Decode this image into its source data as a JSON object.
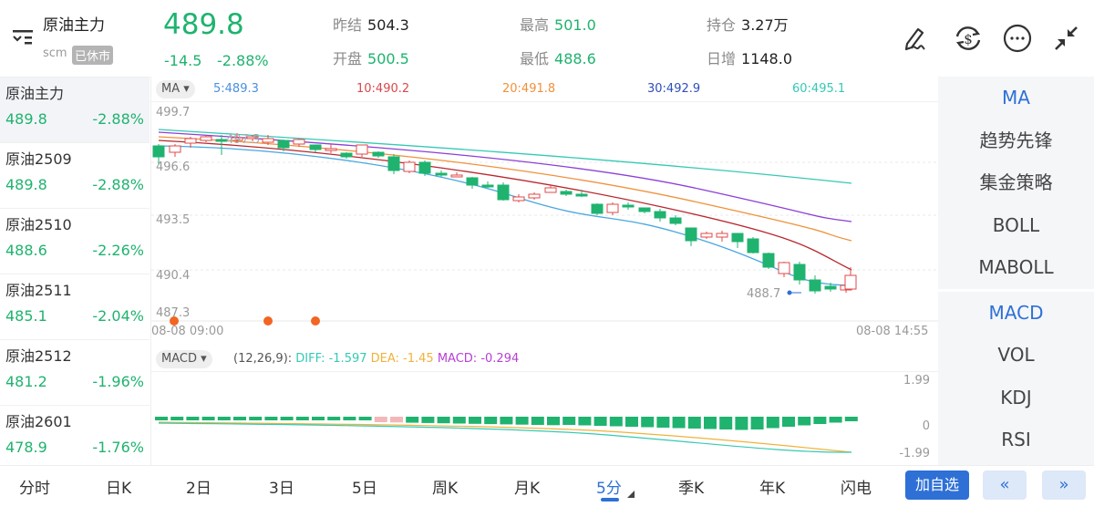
{
  "header": {
    "name": "原油主力",
    "exchange": "scm",
    "status": "已休市",
    "price": "489.8",
    "change": "-14.5",
    "change_pct": "-2.88%",
    "stats": [
      {
        "label": "昨结",
        "value": "504.3",
        "color": "#222222"
      },
      {
        "label": "开盘",
        "value": "500.5",
        "color": "#1fb36f"
      },
      {
        "label": "最高",
        "value": "501.0",
        "color": "#1fb36f"
      },
      {
        "label": "最低",
        "value": "488.6",
        "color": "#1fb36f"
      },
      {
        "label": "持仓",
        "value": "3.27万",
        "color": "#222222"
      },
      {
        "label": "日增",
        "value": "1148.0",
        "color": "#222222"
      }
    ],
    "icons": [
      "draw-icon",
      "currency-exchange-icon",
      "more-icon",
      "collapse-icon"
    ]
  },
  "contracts": [
    {
      "name": "原油主力",
      "price": "489.8",
      "pct": "-2.88%"
    },
    {
      "name": "原油2509",
      "price": "489.8",
      "pct": "-2.88%"
    },
    {
      "name": "原油2510",
      "price": "488.6",
      "pct": "-2.26%"
    },
    {
      "name": "原油2511",
      "price": "485.1",
      "pct": "-2.04%"
    },
    {
      "name": "原油2512",
      "price": "481.2",
      "pct": "-1.96%"
    },
    {
      "name": "原油2601",
      "price": "478.9",
      "pct": "-1.76%"
    }
  ],
  "ma_bar": {
    "selector": "MA ▾",
    "values": [
      {
        "label": "5:489.3",
        "color": "#4a8fe0"
      },
      {
        "label": "10:490.2",
        "color": "#d9484b"
      },
      {
        "label": "20:491.8",
        "color": "#f0913a"
      },
      {
        "label": "30:492.9",
        "color": "#2d4fb8"
      },
      {
        "label": "60:495.1",
        "color": "#35c9b5"
      }
    ]
  },
  "macd_bar": {
    "selector": "MACD ▾",
    "params": "(12,26,9):",
    "diff": "DIFF: -1.597",
    "dea": "DEA: -1.45",
    "macd": "MACD: -0.294"
  },
  "chart_data": [
    {
      "type": "candlestick",
      "title": "原油主力 5分",
      "y_ticks": [
        "499.7",
        "496.6",
        "493.5",
        "490.4",
        "487.3"
      ],
      "x_labels": [
        "08-08 09:00",
        "08-08 14:55"
      ],
      "annotations": [
        "497.5",
        "488.7"
      ],
      "ylim": [
        487.3,
        499.7
      ],
      "ma_series": [
        {
          "name": "MA5",
          "last": 489.3
        },
        {
          "name": "MA10",
          "last": 490.2
        },
        {
          "name": "MA20",
          "last": 491.8
        },
        {
          "name": "MA30",
          "last": 492.9
        },
        {
          "name": "MA60",
          "last": 495.1
        }
      ]
    },
    {
      "type": "bar",
      "title": "MACD (12,26,9)",
      "y_ticks": [
        "1.99",
        "0",
        "-1.99"
      ],
      "series": [
        {
          "name": "DIFF",
          "last": -1.597
        },
        {
          "name": "DEA",
          "last": -1.45
        },
        {
          "name": "MACD",
          "last": -0.294
        }
      ]
    }
  ],
  "right_panel": {
    "main_indicators": [
      "MA",
      "趋势先锋",
      "集金策略",
      "BOLL",
      "MABOLL"
    ],
    "sub_indicators": [
      "MACD",
      "VOL",
      "KDJ",
      "RSI"
    ]
  },
  "bottom": {
    "tabs": [
      "分时",
      "日K",
      "2日",
      "3日",
      "5日",
      "周K",
      "月K",
      "5分",
      "季K",
      "年K",
      "闪电"
    ],
    "selected": "5分",
    "add_watch": "加自选",
    "prev": "«",
    "next": "»"
  }
}
